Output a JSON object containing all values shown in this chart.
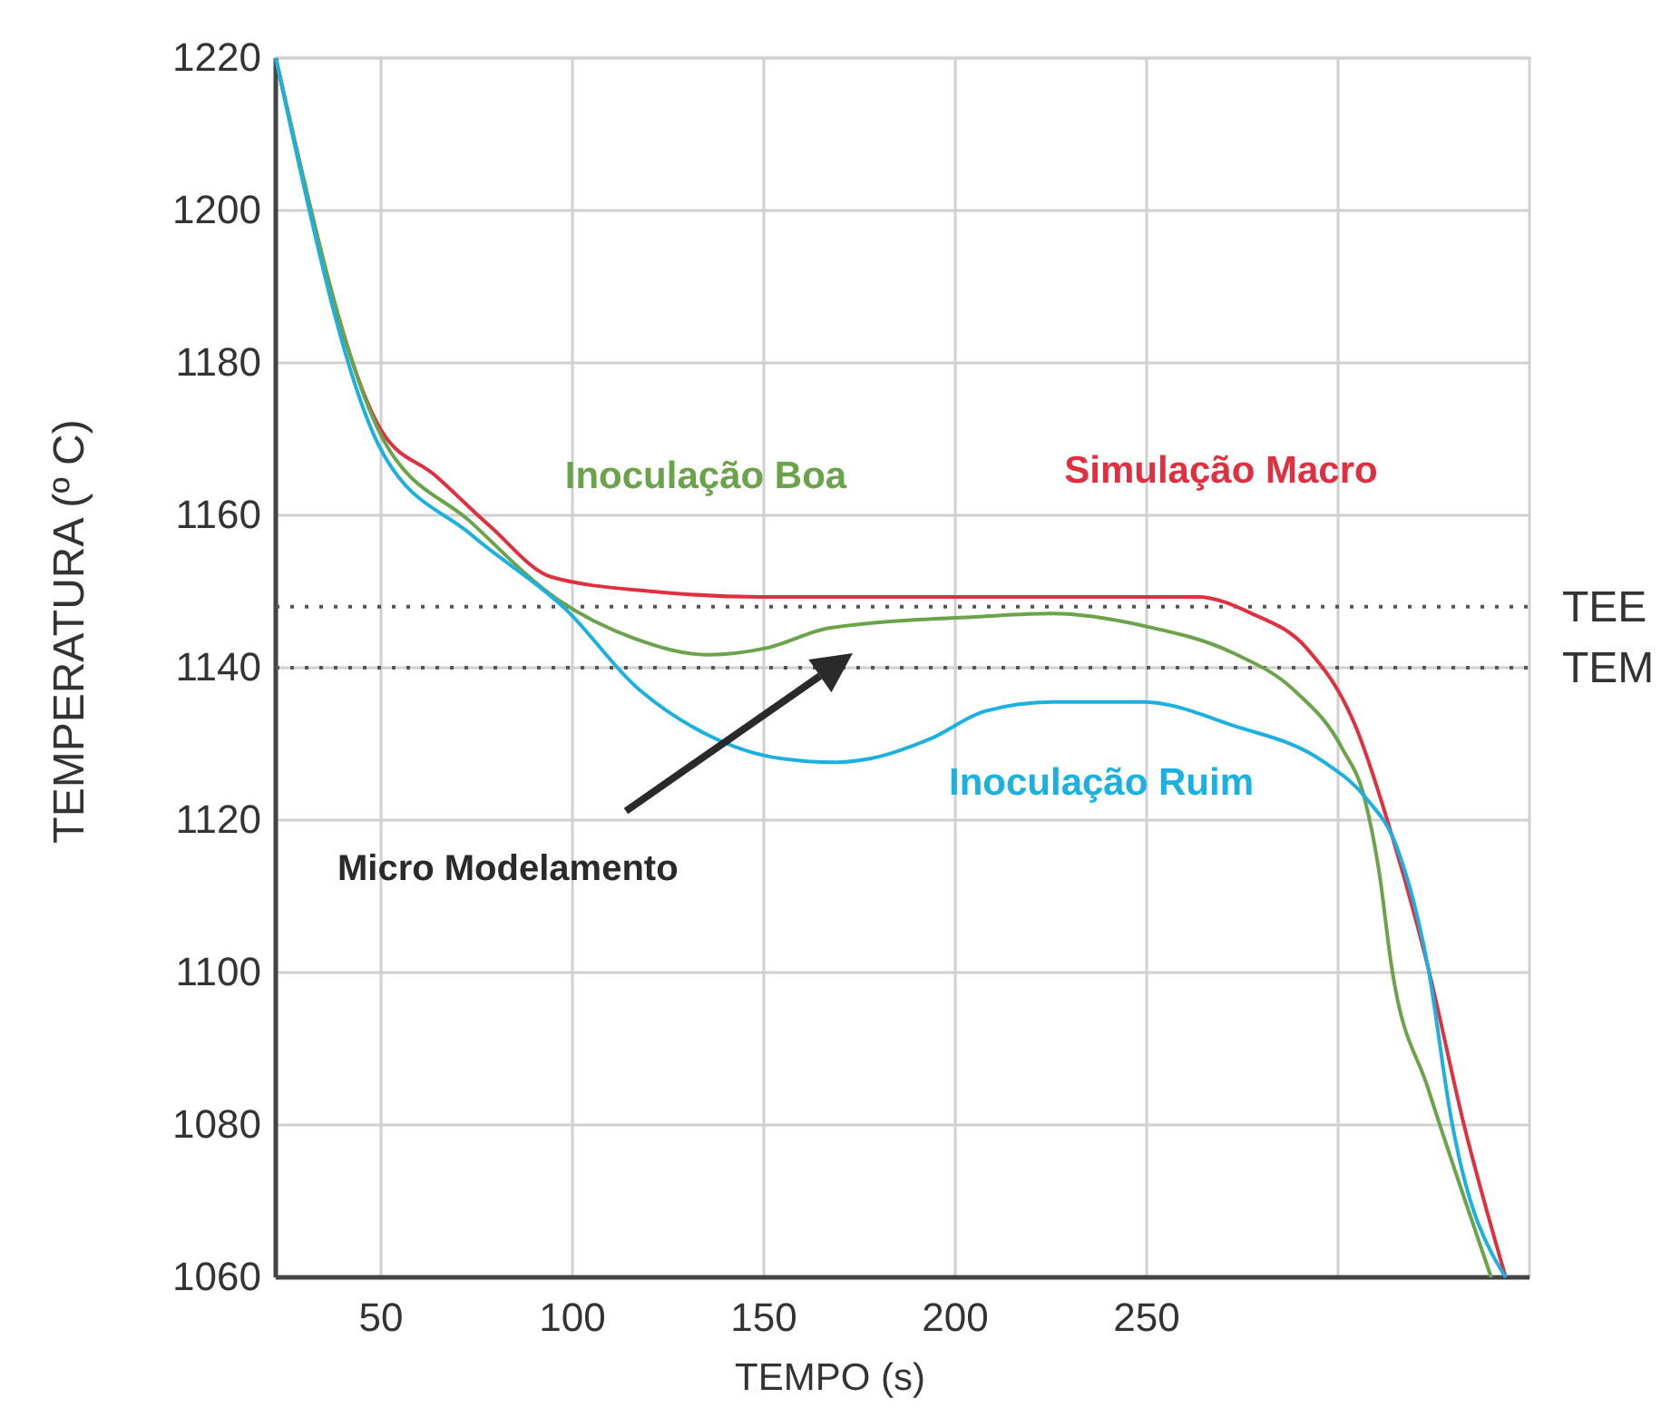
{
  "chart_data": {
    "type": "line",
    "xlabel": "TEMPO (s)",
    "ylabel": "TEMPERATURA (º C)",
    "xlim": [
      22.5,
      350
    ],
    "ylim": [
      1060,
      1220
    ],
    "xticks": [
      50,
      100,
      150,
      200,
      250,
      {
        "value": 300,
        "label": null
      }
    ],
    "yticks": [
      1060,
      1080,
      1100,
      1120,
      1140,
      1160,
      1180,
      1200,
      1220
    ],
    "grid": true,
    "marker": "none",
    "line_style": "solid",
    "series": [
      {
        "name": "Simulação Macro",
        "color": "#e0303f",
        "x": [
          22.5,
          50,
          64.2,
          78.4,
          94.5,
          121.1,
          149.5,
          206.4,
          263.3,
          277.5,
          291.7,
          304.5,
          314,
          323.5,
          332.9,
          343.8
        ],
        "values": [
          1220,
          1171.2,
          1165.2,
          1158.6,
          1151.9,
          1150,
          1149.3,
          1149.3,
          1149.3,
          1147.1,
          1142.6,
          1132.4,
          1118.1,
          1100.7,
          1080,
          1060
        ]
      },
      {
        "name": "Inoculação Boa",
        "color": "#6ba34a",
        "x": [
          22.5,
          50,
          73.7,
          96,
          116.4,
          135.3,
          150.9,
          167.1,
          206.4,
          225.4,
          249.1,
          272.7,
          288.4,
          301.2,
          306.9,
          310.7,
          314,
          323.5,
          332.9,
          340
        ],
        "values": [
          1220,
          1170.5,
          1159,
          1149,
          1143.8,
          1141.7,
          1142.6,
          1145.2,
          1146.7,
          1147.1,
          1145.5,
          1141.9,
          1137.1,
          1129.3,
          1122.9,
          1113.3,
          1100.7,
          1084.8,
          1070.5,
          1060
        ]
      },
      {
        "name": "Inoculação Ruim",
        "color": "#1ab0e0",
        "x": [
          22.5,
          50,
          73.7,
          98.8,
          116.4,
          135.3,
          154.3,
          168.5,
          178,
          193.6,
          207.8,
          225.4,
          249.1,
          272.7,
          296.4,
          307.3,
          315.4,
          323.5,
          329.6,
          343.8
        ],
        "values": [
          1220,
          1168.6,
          1157.4,
          1147.4,
          1137.6,
          1131.2,
          1128.1,
          1127.6,
          1128.1,
          1130.7,
          1134.3,
          1135.5,
          1135.5,
          1132.4,
          1127.6,
          1122.9,
          1116.4,
          1100.7,
          1080.7,
          1060
        ]
      }
    ],
    "ref_lines": [
      {
        "axis": "y",
        "value": 1148,
        "label": "TEE",
        "color": "#555555",
        "line_style": "dotted"
      },
      {
        "axis": "y",
        "value": 1140,
        "label": "TEM",
        "color": "#555555",
        "line_style": "dotted"
      }
    ],
    "annotations": [
      "Micro Modelamento"
    ]
  }
}
